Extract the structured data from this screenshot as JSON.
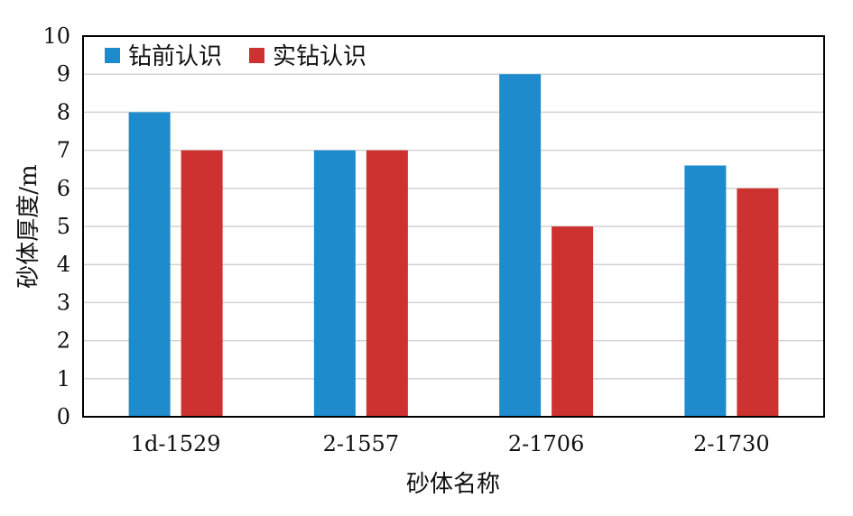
{
  "chart_data": {
    "type": "bar",
    "categories": [
      "1d-1529",
      "2-1557",
      "2-1706",
      "2-1730"
    ],
    "series": [
      {
        "name": "钻前认识",
        "color": "#1e8bcd",
        "values": [
          8,
          7,
          9,
          6.6
        ]
      },
      {
        "name": "实钻认识",
        "color": "#cd3230",
        "values": [
          7,
          7,
          5,
          6
        ]
      }
    ],
    "xlabel": "砂体名称",
    "ylabel": "砂体厚度/m",
    "ylim": [
      0,
      10
    ],
    "yticks": [
      0,
      1,
      2,
      3,
      4,
      5,
      6,
      7,
      8,
      9,
      10
    ],
    "grid": true,
    "legend_position": "top-left"
  }
}
